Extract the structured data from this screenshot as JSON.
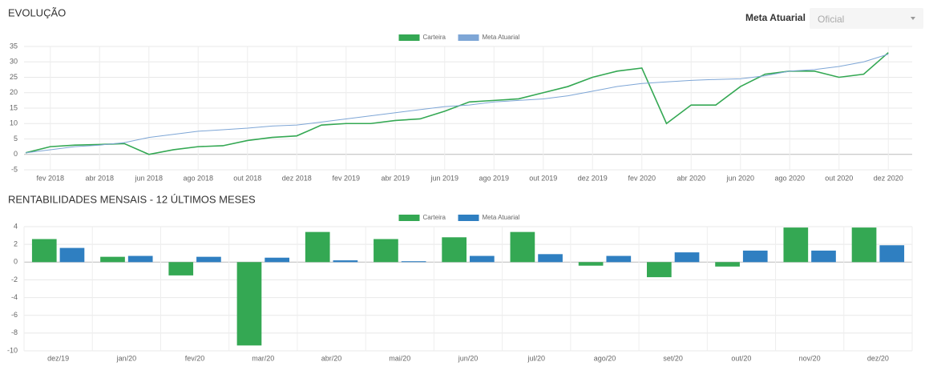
{
  "controls": {
    "label": "Meta Atuarial",
    "select": "Oficial"
  },
  "chart_data": [
    {
      "type": "line",
      "title": "EVOLUÇÃO",
      "categories": [
        null,
        "fev 2018",
        null,
        "abr 2018",
        null,
        "jun 2018",
        null,
        "ago 2018",
        null,
        "out 2018",
        null,
        "dez 2018",
        null,
        "fev 2019",
        null,
        "abr 2019",
        null,
        "jun 2019",
        null,
        "ago 2019",
        null,
        "out 2019",
        null,
        "dez 2019",
        null,
        "fev 2020",
        null,
        "abr 2020",
        null,
        "jun 2020",
        null,
        "ago 2020",
        null,
        "out 2020",
        null,
        "dez 2020"
      ],
      "series": [
        {
          "name": "Carteira",
          "color": "#34a853",
          "values": [
            0.5,
            2.5,
            3,
            3.2,
            3.5,
            0,
            1.5,
            2.5,
            2.8,
            4.5,
            5.5,
            6,
            9.5,
            10,
            10,
            11,
            11.5,
            14,
            17,
            17.5,
            18,
            20,
            22,
            25,
            27,
            28,
            10,
            16,
            16,
            22,
            26,
            27,
            27,
            25,
            26,
            33
          ]
        },
        {
          "name": "Meta Atuarial",
          "color": "#7ea6d6",
          "values": [
            0.5,
            1.5,
            2.5,
            3,
            3.8,
            5.5,
            6.5,
            7.5,
            8,
            8.5,
            9.2,
            9.5,
            10.5,
            11.5,
            12.5,
            13.5,
            14.5,
            15.5,
            16,
            17,
            17.5,
            18,
            19,
            20.5,
            22,
            23,
            23.5,
            24,
            24.3,
            24.5,
            25.5,
            27,
            27.5,
            28.5,
            30,
            32.5
          ]
        }
      ],
      "ylim": [
        -5,
        35
      ],
      "yticks": [
        -5,
        0,
        5,
        10,
        15,
        20,
        25,
        30,
        35
      ],
      "grid": true,
      "legend": "top"
    },
    {
      "type": "bar",
      "title": "RENTABILIDADES MENSAIS - 12 ÚLTIMOS MESES",
      "categories": [
        "dez/19",
        "jan/20",
        "fev/20",
        "mar/20",
        "abr/20",
        "mai/20",
        "jun/20",
        "jul/20",
        "ago/20",
        "set/20",
        "out/20",
        "nov/20",
        "dez/20"
      ],
      "series": [
        {
          "name": "Carteira",
          "color": "#34a853",
          "values": [
            2.6,
            0.6,
            -1.5,
            -9.4,
            3.4,
            2.6,
            2.8,
            3.4,
            -0.4,
            -1.7,
            -0.5,
            3.9,
            3.9
          ]
        },
        {
          "name": "Meta Atuarial",
          "color": "#2f7fc1",
          "values": [
            1.6,
            0.7,
            0.6,
            0.5,
            0.2,
            0.1,
            0.7,
            0.9,
            0.7,
            1.1,
            1.3,
            1.3,
            1.9
          ]
        }
      ],
      "ylim": [
        -10,
        4
      ],
      "yticks": [
        -10,
        -8,
        -6,
        -4,
        -2,
        0,
        2,
        4
      ],
      "grid": true,
      "legend": "top"
    }
  ]
}
